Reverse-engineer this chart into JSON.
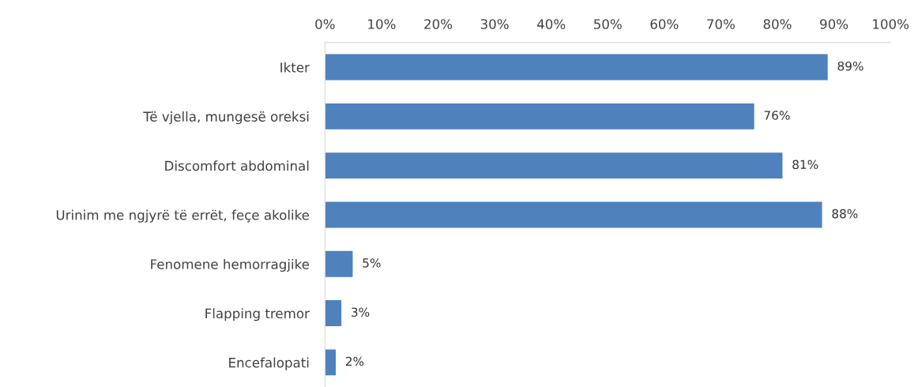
{
  "chart_data": {
    "type": "bar",
    "orientation": "horizontal",
    "categories": [
      "Ikter",
      "Të vjella, mungesë oreksi",
      "Discomfort abdominal",
      "Urinim me ngjyrë të errët, feçe akolike",
      "Fenomene hemorragjike",
      "Flapping tremor",
      "Encefalopati"
    ],
    "values": [
      89,
      76,
      81,
      88,
      5,
      3,
      2
    ],
    "value_labels": [
      "89%",
      "76%",
      "81%",
      "88%",
      "5%",
      "3%",
      "2%"
    ],
    "color": "#4f81bd",
    "xlim": [
      0,
      100
    ],
    "xticks": [
      {
        "value": 0,
        "label": "0%"
      },
      {
        "value": 10,
        "label": "10%"
      },
      {
        "value": 20,
        "label": "20%"
      },
      {
        "value": 30,
        "label": "30%"
      },
      {
        "value": 40,
        "label": "40%"
      },
      {
        "value": 50,
        "label": "50%"
      },
      {
        "value": 60,
        "label": "60%"
      },
      {
        "value": 70,
        "label": "70%"
      },
      {
        "value": 80,
        "label": "80%"
      },
      {
        "value": 90,
        "label": "90%"
      },
      {
        "value": 100,
        "label": "100%"
      }
    ],
    "grid": false,
    "legend": false
  }
}
